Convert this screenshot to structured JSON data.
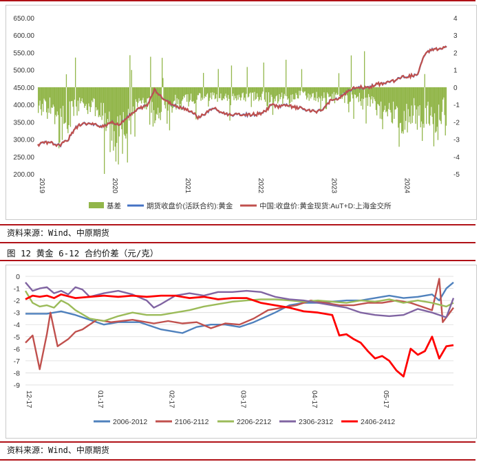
{
  "chart1": {
    "type": "area+line",
    "y_left": {
      "min": 200,
      "max": 650,
      "step": 50,
      "ticks": [
        "200.00",
        "250.00",
        "300.00",
        "350.00",
        "400.00",
        "450.00",
        "500.00",
        "550.00",
        "600.00",
        "650.00"
      ]
    },
    "y_right": {
      "min": -5,
      "max": 4,
      "step": 1,
      "ticks": [
        "-5",
        "-4",
        "-3",
        "-2",
        "-1",
        "0",
        "1",
        "2",
        "3",
        "4"
      ]
    },
    "x": {
      "min": 2019.0,
      "max": 2024.6,
      "ticks": [
        "2019",
        "2020",
        "2021",
        "2022",
        "2023",
        "2024"
      ]
    },
    "legend": [
      "基差",
      "期货收盘价(活跃合约):黄金",
      "中国:收盘价:黄金现货:AuT+D:上海金交所"
    ],
    "colors": {
      "basis": "#92b64a",
      "futures": "#4472c4",
      "spot": "#c0504d"
    },
    "series": {
      "price_points": [
        [
          2019.0,
          285
        ],
        [
          2019.1,
          290
        ],
        [
          2019.2,
          288
        ],
        [
          2019.3,
          282
        ],
        [
          2019.42,
          300
        ],
        [
          2019.5,
          330
        ],
        [
          2019.6,
          345
        ],
        [
          2019.7,
          345
        ],
        [
          2019.8,
          340
        ],
        [
          2019.9,
          338
        ],
        [
          2020.0,
          350
        ],
        [
          2020.1,
          340
        ],
        [
          2020.2,
          360
        ],
        [
          2020.3,
          375
        ],
        [
          2020.4,
          390
        ],
        [
          2020.5,
          398
        ],
        [
          2020.6,
          445
        ],
        [
          2020.7,
          420
        ],
        [
          2020.8,
          405
        ],
        [
          2020.9,
          395
        ],
        [
          2021.0,
          390
        ],
        [
          2021.1,
          380
        ],
        [
          2021.2,
          363
        ],
        [
          2021.3,
          375
        ],
        [
          2021.4,
          390
        ],
        [
          2021.5,
          378
        ],
        [
          2021.6,
          372
        ],
        [
          2021.7,
          370
        ],
        [
          2021.8,
          372
        ],
        [
          2021.9,
          370
        ],
        [
          2022.0,
          372
        ],
        [
          2022.1,
          378
        ],
        [
          2022.2,
          400
        ],
        [
          2022.3,
          395
        ],
        [
          2022.4,
          398
        ],
        [
          2022.5,
          392
        ],
        [
          2022.6,
          390
        ],
        [
          2022.7,
          382
        ],
        [
          2022.8,
          380
        ],
        [
          2022.9,
          385
        ],
        [
          2023.0,
          410
        ],
        [
          2023.1,
          415
        ],
        [
          2023.2,
          430
        ],
        [
          2023.3,
          445
        ],
        [
          2023.4,
          450
        ],
        [
          2023.5,
          448
        ],
        [
          2023.6,
          455
        ],
        [
          2023.7,
          460
        ],
        [
          2023.8,
          465
        ],
        [
          2023.9,
          470
        ],
        [
          2024.0,
          480
        ],
        [
          2024.1,
          482
        ],
        [
          2024.2,
          485
        ],
        [
          2024.3,
          545
        ],
        [
          2024.4,
          560
        ],
        [
          2024.5,
          560
        ],
        [
          2024.6,
          565
        ]
      ],
      "basis_points": [
        [
          2019.0,
          -1.5
        ],
        [
          2019.2,
          -1.0
        ],
        [
          2019.3,
          -2.6
        ],
        [
          2019.45,
          -1.6
        ],
        [
          2019.6,
          -0.7
        ],
        [
          2019.8,
          -1.5
        ],
        [
          2019.95,
          -2.1
        ],
        [
          2020.05,
          -3.2
        ],
        [
          2020.2,
          -2.7
        ],
        [
          2020.3,
          -1.3
        ],
        [
          2020.45,
          -0.8
        ],
        [
          2020.55,
          -1.6
        ],
        [
          2020.7,
          -1.2
        ],
        [
          2020.85,
          -1.0
        ],
        [
          2021.0,
          -0.8
        ],
        [
          2021.2,
          -0.6
        ],
        [
          2021.4,
          -0.5
        ],
        [
          2021.6,
          -0.7
        ],
        [
          2021.8,
          -0.6
        ],
        [
          2022.0,
          -0.5
        ],
        [
          2022.2,
          -0.6
        ],
        [
          2022.4,
          -0.7
        ],
        [
          2022.6,
          -0.4
        ],
        [
          2022.8,
          -0.6
        ],
        [
          2023.0,
          -0.5
        ],
        [
          2023.2,
          -0.6
        ],
        [
          2023.4,
          -0.7
        ],
        [
          2023.6,
          -0.8
        ],
        [
          2023.75,
          -1.8
        ],
        [
          2023.9,
          -1.2
        ],
        [
          2024.0,
          -2.4
        ],
        [
          2024.15,
          -1.2
        ],
        [
          2024.25,
          -2.2
        ],
        [
          2024.35,
          -1.6
        ],
        [
          2024.45,
          -2.6
        ],
        [
          2024.55,
          -1.2
        ],
        [
          2024.6,
          -1.5
        ]
      ]
    }
  },
  "source_1": "资料来源：Wind、中原期货",
  "figure_title": "图 12 黄金 6-12 合约价差（元/克）",
  "chart2": {
    "type": "line",
    "y": {
      "min": -9,
      "max": 0,
      "step": 1,
      "ticks": [
        "-9",
        "-8",
        "-7",
        "-6",
        "-5",
        "-4",
        "-3",
        "-2",
        "-1",
        "0"
      ]
    },
    "x_ticks": [
      "12-17",
      "01-17",
      "02-17",
      "03-17",
      "04-17",
      "05-17"
    ],
    "x_range": [
      0,
      120
    ],
    "series": [
      {
        "name": "2006-2012",
        "color": "#4f81bd",
        "points": [
          [
            0,
            -3.1
          ],
          [
            6,
            -3.1
          ],
          [
            10,
            -2.9
          ],
          [
            14,
            -3.2
          ],
          [
            18,
            -3.6
          ],
          [
            22,
            -4.0
          ],
          [
            26,
            -3.8
          ],
          [
            32,
            -3.8
          ],
          [
            38,
            -4.4
          ],
          [
            44,
            -4.7
          ],
          [
            48,
            -4.2
          ],
          [
            52,
            -4.0
          ],
          [
            56,
            -4.0
          ],
          [
            60,
            -4.2
          ],
          [
            64,
            -3.8
          ],
          [
            70,
            -3.0
          ],
          [
            74,
            -2.4
          ],
          [
            78,
            -2.2
          ],
          [
            82,
            -2.2
          ],
          [
            86,
            -2.1
          ],
          [
            90,
            -2.0
          ],
          [
            94,
            -2.0
          ],
          [
            98,
            -1.8
          ],
          [
            102,
            -1.6
          ],
          [
            106,
            -1.8
          ],
          [
            110,
            -1.7
          ],
          [
            114,
            -1.5
          ],
          [
            116,
            -2.0
          ],
          [
            118,
            -1.0
          ],
          [
            120,
            -0.5
          ]
        ]
      },
      {
        "name": "2106-2112",
        "color": "#c0504d",
        "points": [
          [
            0,
            -5.5
          ],
          [
            2,
            -4.9
          ],
          [
            4,
            -7.7
          ],
          [
            6,
            -4.8
          ],
          [
            7,
            -3.0
          ],
          [
            9,
            -5.8
          ],
          [
            12,
            -5.2
          ],
          [
            14,
            -4.6
          ],
          [
            16,
            -4.4
          ],
          [
            20,
            -3.6
          ],
          [
            24,
            -3.8
          ],
          [
            30,
            -3.6
          ],
          [
            36,
            -3.9
          ],
          [
            40,
            -3.7
          ],
          [
            44,
            -3.9
          ],
          [
            48,
            -3.8
          ],
          [
            52,
            -4.3
          ],
          [
            56,
            -3.9
          ],
          [
            60,
            -4.0
          ],
          [
            64,
            -3.5
          ],
          [
            68,
            -2.8
          ],
          [
            72,
            -2.6
          ],
          [
            76,
            -2.4
          ],
          [
            80,
            -2.0
          ],
          [
            84,
            -2.2
          ],
          [
            88,
            -2.4
          ],
          [
            92,
            -2.4
          ],
          [
            96,
            -2.2
          ],
          [
            100,
            -2.2
          ],
          [
            104,
            -2.0
          ],
          [
            108,
            -2.2
          ],
          [
            112,
            -2.6
          ],
          [
            114,
            -2.8
          ],
          [
            116,
            -0.2
          ],
          [
            117,
            -3.8
          ],
          [
            120,
            -2.6
          ]
        ]
      },
      {
        "name": "2206-2212",
        "color": "#9bbb59",
        "points": [
          [
            0,
            -1.2
          ],
          [
            2,
            -2.2
          ],
          [
            4,
            -2.5
          ],
          [
            6,
            -2.4
          ],
          [
            8,
            -2.6
          ],
          [
            10,
            -2.0
          ],
          [
            12,
            -2.3
          ],
          [
            14,
            -2.8
          ],
          [
            18,
            -3.5
          ],
          [
            22,
            -3.7
          ],
          [
            26,
            -3.3
          ],
          [
            30,
            -3.0
          ],
          [
            34,
            -3.2
          ],
          [
            38,
            -3.2
          ],
          [
            42,
            -3.0
          ],
          [
            46,
            -2.8
          ],
          [
            50,
            -2.5
          ],
          [
            54,
            -2.3
          ],
          [
            58,
            -2.1
          ],
          [
            62,
            -2.0
          ],
          [
            66,
            -1.9
          ],
          [
            70,
            -1.9
          ],
          [
            74,
            -2.0
          ],
          [
            78,
            -2.1
          ],
          [
            82,
            -2.0
          ],
          [
            86,
            -2.1
          ],
          [
            90,
            -2.2
          ],
          [
            94,
            -2.0
          ],
          [
            98,
            -2.1
          ],
          [
            102,
            -1.9
          ],
          [
            106,
            -2.2
          ],
          [
            110,
            -2.0
          ],
          [
            114,
            -2.2
          ],
          [
            118,
            -2.5
          ],
          [
            120,
            -2.2
          ]
        ]
      },
      {
        "name": "2306-2312",
        "color": "#8064a2",
        "points": [
          [
            0,
            -0.5
          ],
          [
            2,
            -1.2
          ],
          [
            4,
            -1.0
          ],
          [
            6,
            -0.9
          ],
          [
            8,
            -1.4
          ],
          [
            10,
            -1.2
          ],
          [
            12,
            -1.5
          ],
          [
            14,
            -0.9
          ],
          [
            16,
            -1.1
          ],
          [
            18,
            -1.7
          ],
          [
            22,
            -1.4
          ],
          [
            26,
            -1.2
          ],
          [
            30,
            -1.5
          ],
          [
            34,
            -2.0
          ],
          [
            36,
            -2.6
          ],
          [
            38,
            -2.3
          ],
          [
            42,
            -1.6
          ],
          [
            46,
            -1.4
          ],
          [
            50,
            -1.6
          ],
          [
            54,
            -1.3
          ],
          [
            58,
            -1.3
          ],
          [
            62,
            -1.2
          ],
          [
            66,
            -1.3
          ],
          [
            70,
            -1.7
          ],
          [
            74,
            -1.9
          ],
          [
            78,
            -2.0
          ],
          [
            82,
            -2.2
          ],
          [
            86,
            -2.4
          ],
          [
            90,
            -2.6
          ],
          [
            94,
            -3.0
          ],
          [
            98,
            -3.2
          ],
          [
            102,
            -3.3
          ],
          [
            106,
            -3.2
          ],
          [
            110,
            -2.7
          ],
          [
            114,
            -3.0
          ],
          [
            118,
            -3.4
          ],
          [
            120,
            -1.8
          ]
        ]
      },
      {
        "name": "2406-2412",
        "color": "#ff0000",
        "points": [
          [
            0,
            -1.9
          ],
          [
            2,
            -1.6
          ],
          [
            4,
            -1.7
          ],
          [
            6,
            -1.6
          ],
          [
            8,
            -1.8
          ],
          [
            10,
            -1.5
          ],
          [
            14,
            -1.8
          ],
          [
            18,
            -1.7
          ],
          [
            22,
            -1.6
          ],
          [
            26,
            -1.7
          ],
          [
            30,
            -1.6
          ],
          [
            34,
            -1.7
          ],
          [
            38,
            -1.6
          ],
          [
            42,
            -1.6
          ],
          [
            46,
            -1.8
          ],
          [
            50,
            -1.7
          ],
          [
            54,
            -1.9
          ],
          [
            58,
            -1.8
          ],
          [
            62,
            -1.8
          ],
          [
            66,
            -2.2
          ],
          [
            70,
            -2.4
          ],
          [
            74,
            -2.6
          ],
          [
            78,
            -2.9
          ],
          [
            82,
            -3.0
          ],
          [
            86,
            -3.2
          ],
          [
            88,
            -4.9
          ],
          [
            90,
            -4.8
          ],
          [
            92,
            -5.2
          ],
          [
            94,
            -5.5
          ],
          [
            96,
            -6.2
          ],
          [
            98,
            -6.8
          ],
          [
            100,
            -6.6
          ],
          [
            102,
            -7.0
          ],
          [
            104,
            -7.8
          ],
          [
            106,
            -8.3
          ],
          [
            108,
            -6.0
          ],
          [
            110,
            -6.5
          ],
          [
            112,
            -6.2
          ],
          [
            114,
            -5.0
          ],
          [
            116,
            -6.8
          ],
          [
            118,
            -5.8
          ],
          [
            120,
            -5.7
          ]
        ]
      }
    ]
  },
  "source_2": "资料来源：Wind、中原期货"
}
